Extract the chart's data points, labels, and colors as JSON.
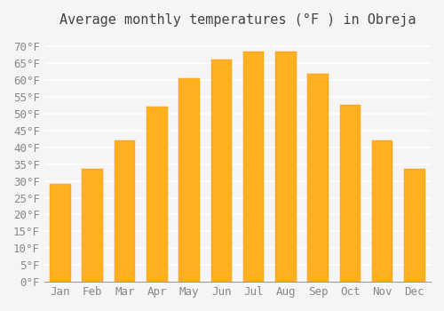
{
  "title": "Average monthly temperatures (°F ) in Obreja",
  "months": [
    "Jan",
    "Feb",
    "Mar",
    "Apr",
    "May",
    "Jun",
    "Jul",
    "Aug",
    "Sep",
    "Oct",
    "Nov",
    "Dec"
  ],
  "values": [
    29,
    33.5,
    42,
    52,
    60.5,
    66,
    68.5,
    68.5,
    62,
    52.5,
    42,
    33.5
  ],
  "bar_color": "#FFA500",
  "bar_edge_color": "#FFA500",
  "background_color": "#F5F5F5",
  "grid_color": "#FFFFFF",
  "title_fontsize": 11,
  "tick_fontsize": 9,
  "ylim": [
    0,
    73
  ],
  "yticks": [
    0,
    5,
    10,
    15,
    20,
    25,
    30,
    35,
    40,
    45,
    50,
    55,
    60,
    65,
    70
  ]
}
